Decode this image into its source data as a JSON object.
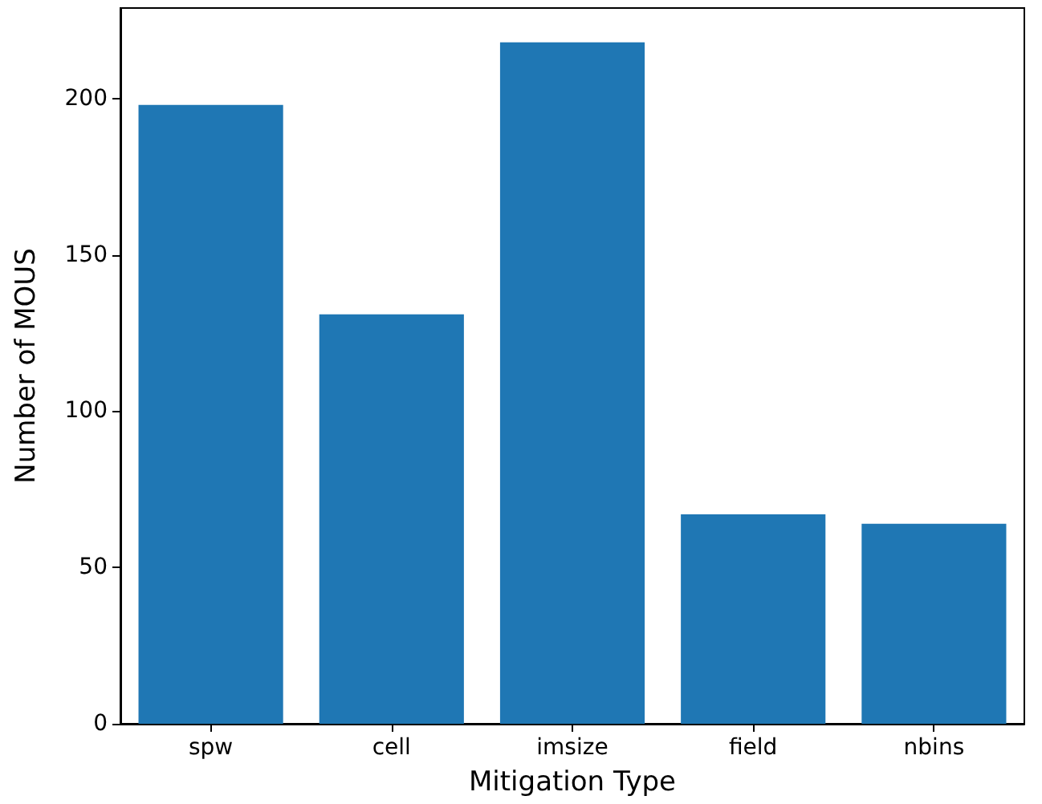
{
  "chart_data": {
    "type": "bar",
    "xlabel": "Mitigation Type",
    "ylabel": "Number of MOUS",
    "categories": [
      "spw",
      "cell",
      "imsize",
      "field",
      "nbins"
    ],
    "values": [
      198,
      131,
      218,
      67,
      64
    ],
    "color": "#1f77b4",
    "ylim": [
      0,
      229
    ],
    "yticks": [
      0,
      50,
      100,
      150,
      200
    ],
    "grid": false
  }
}
